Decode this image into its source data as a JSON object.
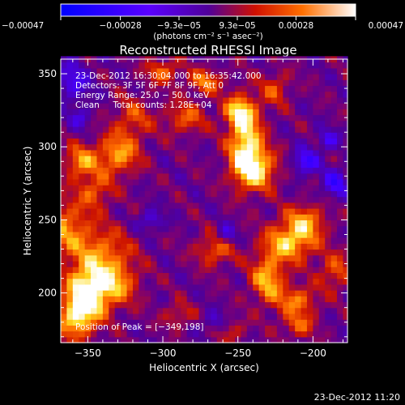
{
  "chart_data": {
    "type": "heatmap",
    "title": "Reconstructed RHESSI Image",
    "xlabel": "Heliocentric X (arcsec)",
    "ylabel": "Heliocentric Y (arcsec)",
    "xlim": [
      -368,
      -177
    ],
    "ylim": [
      166,
      360
    ],
    "x_ticks": [
      -350,
      -300,
      -250,
      -200
    ],
    "x_tick_labels": [
      "−350",
      "−300",
      "−250",
      "−200"
    ],
    "y_ticks": [
      200,
      250,
      300,
      350
    ],
    "y_tick_labels": [
      "200",
      "250",
      "300",
      "350"
    ],
    "colorbar": {
      "min": -0.00047,
      "max": 0.00047,
      "ticks": [
        -0.00047,
        -0.00028,
        -9.3e-05,
        9.3e-05,
        0.00028,
        0.00047
      ],
      "tick_labels": [
        "−0.00047",
        "−0.00028",
        "−9.3e−05",
        "9.3e−05",
        "0.00028",
        "0.00047"
      ],
      "unit_label": "(photons cm⁻² s⁻¹ asec⁻²)"
    },
    "annotations": [
      "23‑Dec‑2012 16:30:04.000 to 16:35:42.000",
      "Detectors: 3F 5F 6F 7F 8F 9F, Att 0",
      "Energy Range: 25.0 − 50.0 keV",
      "Clean     Total counts: 1.28E+04"
    ],
    "peak_label": "Position of Peak = [−349,198]",
    "peak": {
      "x": -349,
      "y": 198
    },
    "hot_regions": [
      {
        "x": -350,
        "y": 200,
        "rx": 10,
        "ry": 12,
        "amp": 1.0
      },
      {
        "x": -358,
        "y": 182,
        "rx": 9,
        "ry": 10,
        "amp": 0.7
      },
      {
        "x": -340,
        "y": 225,
        "rx": 14,
        "ry": 14,
        "amp": 0.55
      },
      {
        "x": -330,
        "y": 205,
        "rx": 10,
        "ry": 10,
        "amp": 0.45
      },
      {
        "x": -365,
        "y": 245,
        "rx": 12,
        "ry": 14,
        "amp": 0.55
      },
      {
        "x": -355,
        "y": 290,
        "rx": 8,
        "ry": 8,
        "amp": 0.6
      },
      {
        "x": -330,
        "y": 295,
        "rx": 10,
        "ry": 10,
        "amp": 0.65
      },
      {
        "x": -345,
        "y": 270,
        "rx": 8,
        "ry": 8,
        "amp": 0.45
      },
      {
        "x": -320,
        "y": 320,
        "rx": 9,
        "ry": 10,
        "amp": 0.4
      },
      {
        "x": -285,
        "y": 320,
        "rx": 10,
        "ry": 8,
        "amp": 0.45
      },
      {
        "x": -300,
        "y": 352,
        "rx": 8,
        "ry": 6,
        "amp": 0.5
      },
      {
        "x": -272,
        "y": 345,
        "rx": 8,
        "ry": 6,
        "amp": 0.55
      },
      {
        "x": -265,
        "y": 230,
        "rx": 9,
        "ry": 8,
        "amp": 0.5
      },
      {
        "x": -245,
        "y": 305,
        "rx": 8,
        "ry": 18,
        "amp": 0.85
      },
      {
        "x": -238,
        "y": 285,
        "rx": 10,
        "ry": 10,
        "amp": 0.75
      },
      {
        "x": -250,
        "y": 325,
        "rx": 7,
        "ry": 7,
        "amp": 0.55
      },
      {
        "x": -225,
        "y": 340,
        "rx": 7,
        "ry": 8,
        "amp": 0.4
      },
      {
        "x": -205,
        "y": 250,
        "rx": 10,
        "ry": 8,
        "amp": 0.55
      },
      {
        "x": -215,
        "y": 235,
        "rx": 12,
        "ry": 9,
        "amp": 0.75
      },
      {
        "x": -230,
        "y": 210,
        "rx": 8,
        "ry": 12,
        "amp": 0.7
      },
      {
        "x": -210,
        "y": 195,
        "rx": 9,
        "ry": 7,
        "amp": 0.55
      },
      {
        "x": -185,
        "y": 215,
        "rx": 8,
        "ry": 9,
        "amp": 0.45
      },
      {
        "x": -210,
        "y": 178,
        "rx": 8,
        "ry": 6,
        "amp": 0.45
      },
      {
        "x": -290,
        "y": 185,
        "rx": 7,
        "ry": 6,
        "amp": 0.35
      },
      {
        "x": -255,
        "y": 175,
        "rx": 7,
        "ry": 6,
        "amp": 0.35
      }
    ],
    "cold_regions": [
      {
        "x": -205,
        "y": 290,
        "rx": 6,
        "ry": 6,
        "amp": 0.6
      },
      {
        "x": -185,
        "y": 275,
        "rx": 6,
        "ry": 7,
        "amp": 0.55
      },
      {
        "x": -190,
        "y": 305,
        "rx": 5,
        "ry": 5,
        "amp": 0.45
      },
      {
        "x": -360,
        "y": 345,
        "rx": 8,
        "ry": 10,
        "amp": 0.45
      },
      {
        "x": -258,
        "y": 240,
        "rx": 5,
        "ry": 5,
        "amp": 0.45
      },
      {
        "x": -308,
        "y": 250,
        "rx": 6,
        "ry": 5,
        "amp": 0.4
      },
      {
        "x": -265,
        "y": 180,
        "rx": 6,
        "ry": 5,
        "amp": 0.35
      },
      {
        "x": -355,
        "y": 320,
        "rx": 5,
        "ry": 5,
        "amp": 0.35
      }
    ],
    "footer_date": "23‑Dec‑2012 11:20"
  }
}
